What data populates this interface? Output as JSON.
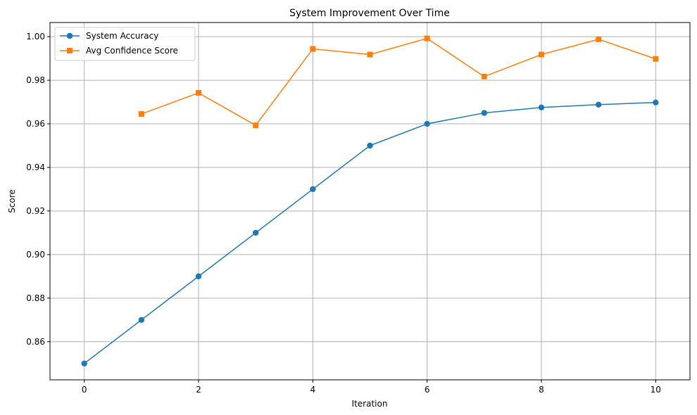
{
  "chart_data": {
    "type": "line",
    "title": "System Improvement Over Time",
    "xlabel": "Iteration",
    "ylabel": "Score",
    "xlim": [
      -0.6,
      10.6
    ],
    "ylim": [
      0.8425,
      1.0065
    ],
    "xticks": [
      0,
      2,
      4,
      6,
      8,
      10
    ],
    "yticks": [
      0.86,
      0.88,
      0.9,
      0.92,
      0.94,
      0.96,
      0.98,
      1.0
    ],
    "xtick_labels": [
      "0",
      "2",
      "4",
      "6",
      "8",
      "10"
    ],
    "ytick_labels": [
      "0.86",
      "0.88",
      "0.90",
      "0.92",
      "0.94",
      "0.96",
      "0.98",
      "1.00"
    ],
    "grid": true,
    "legend_position": "top-left",
    "series": [
      {
        "name": "System Accuracy",
        "color": "#1f77b4",
        "marker": "circle",
        "x": [
          0,
          1,
          2,
          3,
          4,
          5,
          6,
          7,
          8,
          9,
          10
        ],
        "y": [
          0.85,
          0.87,
          0.89,
          0.91,
          0.93,
          0.95,
          0.96,
          0.965,
          0.9675,
          0.9688,
          0.9698
        ]
      },
      {
        "name": "Avg Confidence Score",
        "color": "#ff7f0e",
        "marker": "square",
        "x": [
          1,
          2,
          3,
          4,
          5,
          6,
          7,
          8,
          9,
          10
        ],
        "y": [
          0.9645,
          0.9742,
          0.9593,
          0.9944,
          0.9918,
          0.9992,
          0.9817,
          0.9918,
          0.9988,
          0.9898
        ]
      }
    ]
  }
}
